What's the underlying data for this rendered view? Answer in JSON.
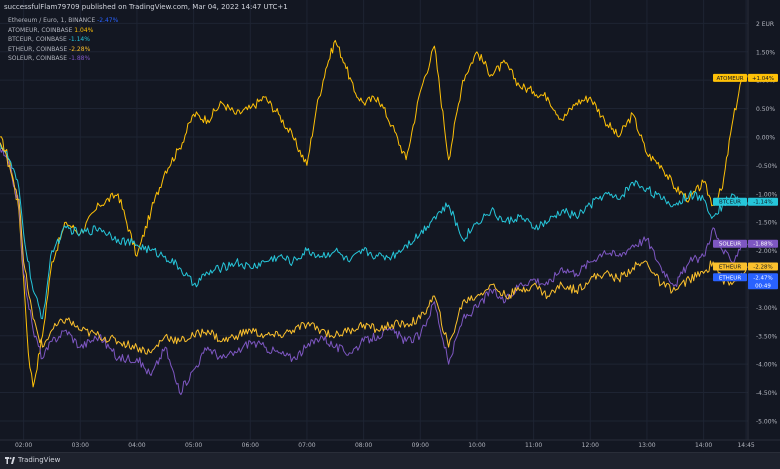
{
  "header": {
    "title": "successfulFlam79709 published on TradingView.com, Mar 04, 2022 14:47 UTC+1"
  },
  "footer": {
    "brand": "TradingView",
    "logo_icon": "tradingview-logo-icon"
  },
  "legend": {
    "items": [
      {
        "label": "Ethereum / Euro, 1, BINANCE",
        "value": "-2.47%",
        "color": "#2962ff"
      },
      {
        "label": "ATOMEUR, COINBASE",
        "value": "1.04%",
        "color": "#ffc107"
      },
      {
        "label": "BTCEUR, COINBASE",
        "value": "-1.14%",
        "color": "#26c6da"
      },
      {
        "label": "ETHEUR, COINBASE",
        "value": "-2.28%",
        "color": "#fbc02d"
      },
      {
        "label": "SOLEUR, COINBASE",
        "value": "-1.88%",
        "color": "#7e57c2"
      }
    ]
  },
  "chart_data": {
    "type": "line",
    "x_unit": "time (HH:MM)",
    "x_range": [
      "01:35",
      "14:47"
    ],
    "xticks": [
      "02:00",
      "03:00",
      "04:00",
      "05:00",
      "06:00",
      "07:00",
      "08:00",
      "09:00",
      "10:00",
      "11:00",
      "12:00",
      "13:00",
      "14:00",
      "14:45"
    ],
    "ylim": [
      -5.3,
      2.2
    ],
    "yticks": [
      "2 EUR",
      "1.50%",
      "1.00%",
      "0.50%",
      "0.00%",
      "-0.50%",
      "-1.00%",
      "-1.50%",
      "-2.00%",
      "-2.50%",
      "-3.00%",
      "-3.50%",
      "-4.00%",
      "-4.50%",
      "-5.00%"
    ],
    "ytick_values": [
      2.0,
      1.5,
      1.0,
      0.5,
      0.0,
      -0.5,
      -1.0,
      -1.5,
      -2.0,
      -2.5,
      -3.0,
      -3.5,
      -4.0,
      -4.5,
      -5.0
    ],
    "grid": true,
    "legend_placement": "top-left",
    "series": [
      {
        "name": "ATOMEUR",
        "color": "#ffc107",
        "last_label": "ATOMEUR",
        "last_value": "+1.04%",
        "y_end": 1.04,
        "x": [
          "01:35",
          "01:45",
          "01:55",
          "02:00",
          "02:05",
          "02:10",
          "02:20",
          "02:30",
          "02:45",
          "03:00",
          "03:20",
          "03:40",
          "04:00",
          "04:15",
          "04:30",
          "04:45",
          "05:00",
          "05:15",
          "05:30",
          "05:45",
          "06:00",
          "06:15",
          "06:30",
          "06:45",
          "07:00",
          "07:10",
          "07:20",
          "07:30",
          "07:40",
          "07:50",
          "08:00",
          "08:15",
          "08:30",
          "08:45",
          "09:00",
          "09:15",
          "09:30",
          "09:45",
          "10:00",
          "10:15",
          "10:30",
          "10:45",
          "11:00",
          "11:15",
          "11:30",
          "11:45",
          "12:00",
          "12:15",
          "12:30",
          "12:45",
          "13:00",
          "13:15",
          "13:30",
          "13:45",
          "14:00",
          "14:10",
          "14:20",
          "14:30",
          "14:40",
          "14:47"
        ],
        "values": [
          0.0,
          -0.4,
          -1.3,
          -2.5,
          -3.8,
          -4.4,
          -3.5,
          -2.2,
          -1.5,
          -1.7,
          -1.2,
          -1.0,
          -2.1,
          -1.3,
          -0.6,
          -0.2,
          0.4,
          0.3,
          0.6,
          0.4,
          0.5,
          0.7,
          0.4,
          0.0,
          -0.5,
          0.5,
          1.2,
          1.7,
          1.3,
          0.8,
          0.6,
          0.7,
          0.2,
          -0.4,
          0.8,
          1.6,
          -0.4,
          1.0,
          1.5,
          1.1,
          1.3,
          0.9,
          0.8,
          0.7,
          0.3,
          0.6,
          0.7,
          0.3,
          0.0,
          0.4,
          -0.3,
          -0.5,
          -0.9,
          -1.1,
          -0.8,
          -1.2,
          -0.9,
          0.2,
          1.0,
          1.04
        ]
      },
      {
        "name": "BTCEUR",
        "color": "#26c6da",
        "last_label": "BTCEUR",
        "last_value": "-1.14%",
        "y_end": -1.14,
        "x": [
          "01:35",
          "01:45",
          "01:55",
          "02:00",
          "02:10",
          "02:20",
          "02:30",
          "02:45",
          "03:00",
          "03:20",
          "03:40",
          "04:00",
          "04:15",
          "04:30",
          "04:45",
          "05:00",
          "05:15",
          "05:30",
          "05:45",
          "06:00",
          "06:15",
          "06:30",
          "06:45",
          "07:00",
          "07:15",
          "07:30",
          "07:45",
          "08:00",
          "08:15",
          "08:30",
          "08:45",
          "09:00",
          "09:15",
          "09:30",
          "09:45",
          "10:00",
          "10:15",
          "10:30",
          "10:45",
          "11:00",
          "11:15",
          "11:30",
          "11:45",
          "12:00",
          "12:15",
          "12:30",
          "12:45",
          "13:00",
          "13:15",
          "13:30",
          "13:45",
          "14:00",
          "14:10",
          "14:20",
          "14:30",
          "14:40",
          "14:47"
        ],
        "values": [
          -0.1,
          -0.4,
          -0.9,
          -1.7,
          -2.7,
          -3.2,
          -2.0,
          -1.6,
          -1.7,
          -1.6,
          -1.8,
          -1.9,
          -2.0,
          -2.1,
          -2.3,
          -2.6,
          -2.4,
          -2.3,
          -2.2,
          -2.3,
          -2.2,
          -2.1,
          -2.2,
          -2.0,
          -2.1,
          -2.0,
          -2.2,
          -2.0,
          -2.1,
          -2.1,
          -1.9,
          -1.7,
          -1.4,
          -1.2,
          -1.8,
          -1.5,
          -1.3,
          -1.5,
          -1.4,
          -1.6,
          -1.5,
          -1.3,
          -1.4,
          -1.2,
          -1.0,
          -1.1,
          -0.8,
          -0.9,
          -1.1,
          -1.2,
          -1.0,
          -1.1,
          -1.4,
          -1.2,
          -1.0,
          -1.2,
          -1.14
        ]
      },
      {
        "name": "SOLEUR",
        "color": "#7e57c2",
        "last_label": "SOLEUR",
        "last_value": "-1.88%",
        "y_end": -1.88,
        "x": [
          "01:35",
          "01:45",
          "01:55",
          "02:00",
          "02:10",
          "02:20",
          "02:30",
          "02:45",
          "03:00",
          "03:20",
          "03:40",
          "04:00",
          "04:15",
          "04:30",
          "04:45",
          "05:00",
          "05:15",
          "05:30",
          "05:45",
          "06:00",
          "06:15",
          "06:30",
          "06:45",
          "07:00",
          "07:15",
          "07:30",
          "07:45",
          "08:00",
          "08:15",
          "08:30",
          "08:45",
          "09:00",
          "09:15",
          "09:30",
          "09:45",
          "10:00",
          "10:15",
          "10:30",
          "10:45",
          "11:00",
          "11:15",
          "11:30",
          "11:45",
          "12:00",
          "12:15",
          "12:30",
          "12:45",
          "13:00",
          "13:15",
          "13:30",
          "13:45",
          "14:00",
          "14:10",
          "14:20",
          "14:30",
          "14:40",
          "14:47"
        ],
        "values": [
          -0.2,
          -0.5,
          -1.2,
          -2.4,
          -3.4,
          -3.9,
          -3.6,
          -3.4,
          -3.7,
          -3.5,
          -3.9,
          -3.9,
          -4.2,
          -3.7,
          -4.5,
          -4.1,
          -3.7,
          -3.9,
          -3.8,
          -3.6,
          -3.7,
          -3.8,
          -3.9,
          -3.7,
          -3.5,
          -3.7,
          -3.8,
          -3.6,
          -3.5,
          -3.4,
          -3.6,
          -3.5,
          -2.9,
          -4.0,
          -3.2,
          -3.0,
          -2.7,
          -2.9,
          -2.6,
          -2.5,
          -2.6,
          -2.3,
          -2.4,
          -2.2,
          -2.0,
          -2.1,
          -1.9,
          -1.8,
          -2.3,
          -2.6,
          -2.2,
          -2.1,
          -1.6,
          -2.0,
          -2.2,
          -1.9,
          -1.88
        ]
      },
      {
        "name": "ETHEUR",
        "color": "#fbc02d",
        "last_label": "ETHEUR",
        "last_value": "-2.28%",
        "y_end": -2.28,
        "x": [
          "01:35",
          "01:45",
          "01:55",
          "02:00",
          "02:10",
          "02:20",
          "02:30",
          "02:45",
          "03:00",
          "03:20",
          "03:40",
          "04:00",
          "04:15",
          "04:30",
          "04:45",
          "05:00",
          "05:15",
          "05:30",
          "05:45",
          "06:00",
          "06:15",
          "06:30",
          "06:45",
          "07:00",
          "07:15",
          "07:30",
          "07:45",
          "08:00",
          "08:15",
          "08:30",
          "08:45",
          "09:00",
          "09:15",
          "09:30",
          "09:45",
          "10:00",
          "10:15",
          "10:30",
          "10:45",
          "11:00",
          "11:15",
          "11:30",
          "11:45",
          "12:00",
          "12:15",
          "12:30",
          "12:45",
          "13:00",
          "13:15",
          "13:30",
          "13:45",
          "14:00",
          "14:10",
          "14:20",
          "14:30",
          "14:40",
          "14:47"
        ],
        "values": [
          -0.1,
          -0.5,
          -1.1,
          -2.2,
          -3.2,
          -3.7,
          -3.4,
          -3.2,
          -3.4,
          -3.5,
          -3.6,
          -3.7,
          -3.8,
          -3.5,
          -3.6,
          -3.5,
          -3.4,
          -3.6,
          -3.5,
          -3.4,
          -3.5,
          -3.5,
          -3.4,
          -3.3,
          -3.4,
          -3.5,
          -3.4,
          -3.3,
          -3.4,
          -3.3,
          -3.3,
          -3.2,
          -2.8,
          -3.7,
          -2.9,
          -2.8,
          -2.6,
          -2.8,
          -2.7,
          -2.6,
          -2.8,
          -2.6,
          -2.7,
          -2.5,
          -2.4,
          -2.5,
          -2.3,
          -2.2,
          -2.6,
          -2.7,
          -2.5,
          -2.4,
          -2.2,
          -2.5,
          -2.6,
          -2.4,
          -2.28
        ]
      },
      {
        "name": "ETHEUR",
        "color": "#2962ff",
        "last_label": "ETHEUR",
        "last_value": "-2.47%",
        "countdown": "00:49",
        "y_end": -2.47,
        "x": [],
        "values": []
      }
    ]
  }
}
